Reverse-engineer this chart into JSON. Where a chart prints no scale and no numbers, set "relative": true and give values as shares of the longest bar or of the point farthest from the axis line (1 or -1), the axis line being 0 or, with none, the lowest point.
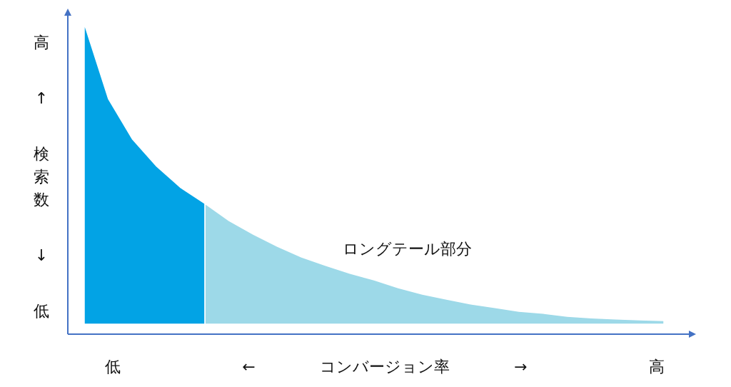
{
  "chart_data": {
    "type": "area",
    "relative": true,
    "xlabel": "低 ← コンバージョン率 → 高",
    "ylabel": "高 ↑ 検索数 ↓ 低",
    "annotations": [
      "ロングテール部分"
    ],
    "categories": [
      null,
      null,
      null,
      null,
      null,
      null,
      null,
      null,
      null,
      null,
      null,
      null,
      null,
      null,
      null,
      null,
      null,
      null,
      null,
      null,
      null,
      null,
      null,
      null,
      null
    ],
    "series": [
      {
        "color": "#02a3e5",
        "values": [
          1,
          0.75,
          0.615,
          0.525,
          0.454,
          0.401,
          null,
          null,
          null,
          null,
          null,
          null,
          null,
          null,
          null,
          null,
          null,
          null,
          null,
          null,
          null,
          null,
          null,
          null,
          null
        ]
      },
      {
        "color": "#9dd9e8",
        "values": [
          null,
          null,
          null,
          null,
          null,
          0.401,
          0.344,
          0.299,
          0.259,
          0.223,
          0.195,
          0.169,
          0.147,
          0.121,
          0.1,
          0.083,
          0.067,
          0.055,
          0.043,
          0.036,
          0.026,
          0.021,
          0.017,
          0.014,
          0.012
        ]
      }
    ]
  }
}
